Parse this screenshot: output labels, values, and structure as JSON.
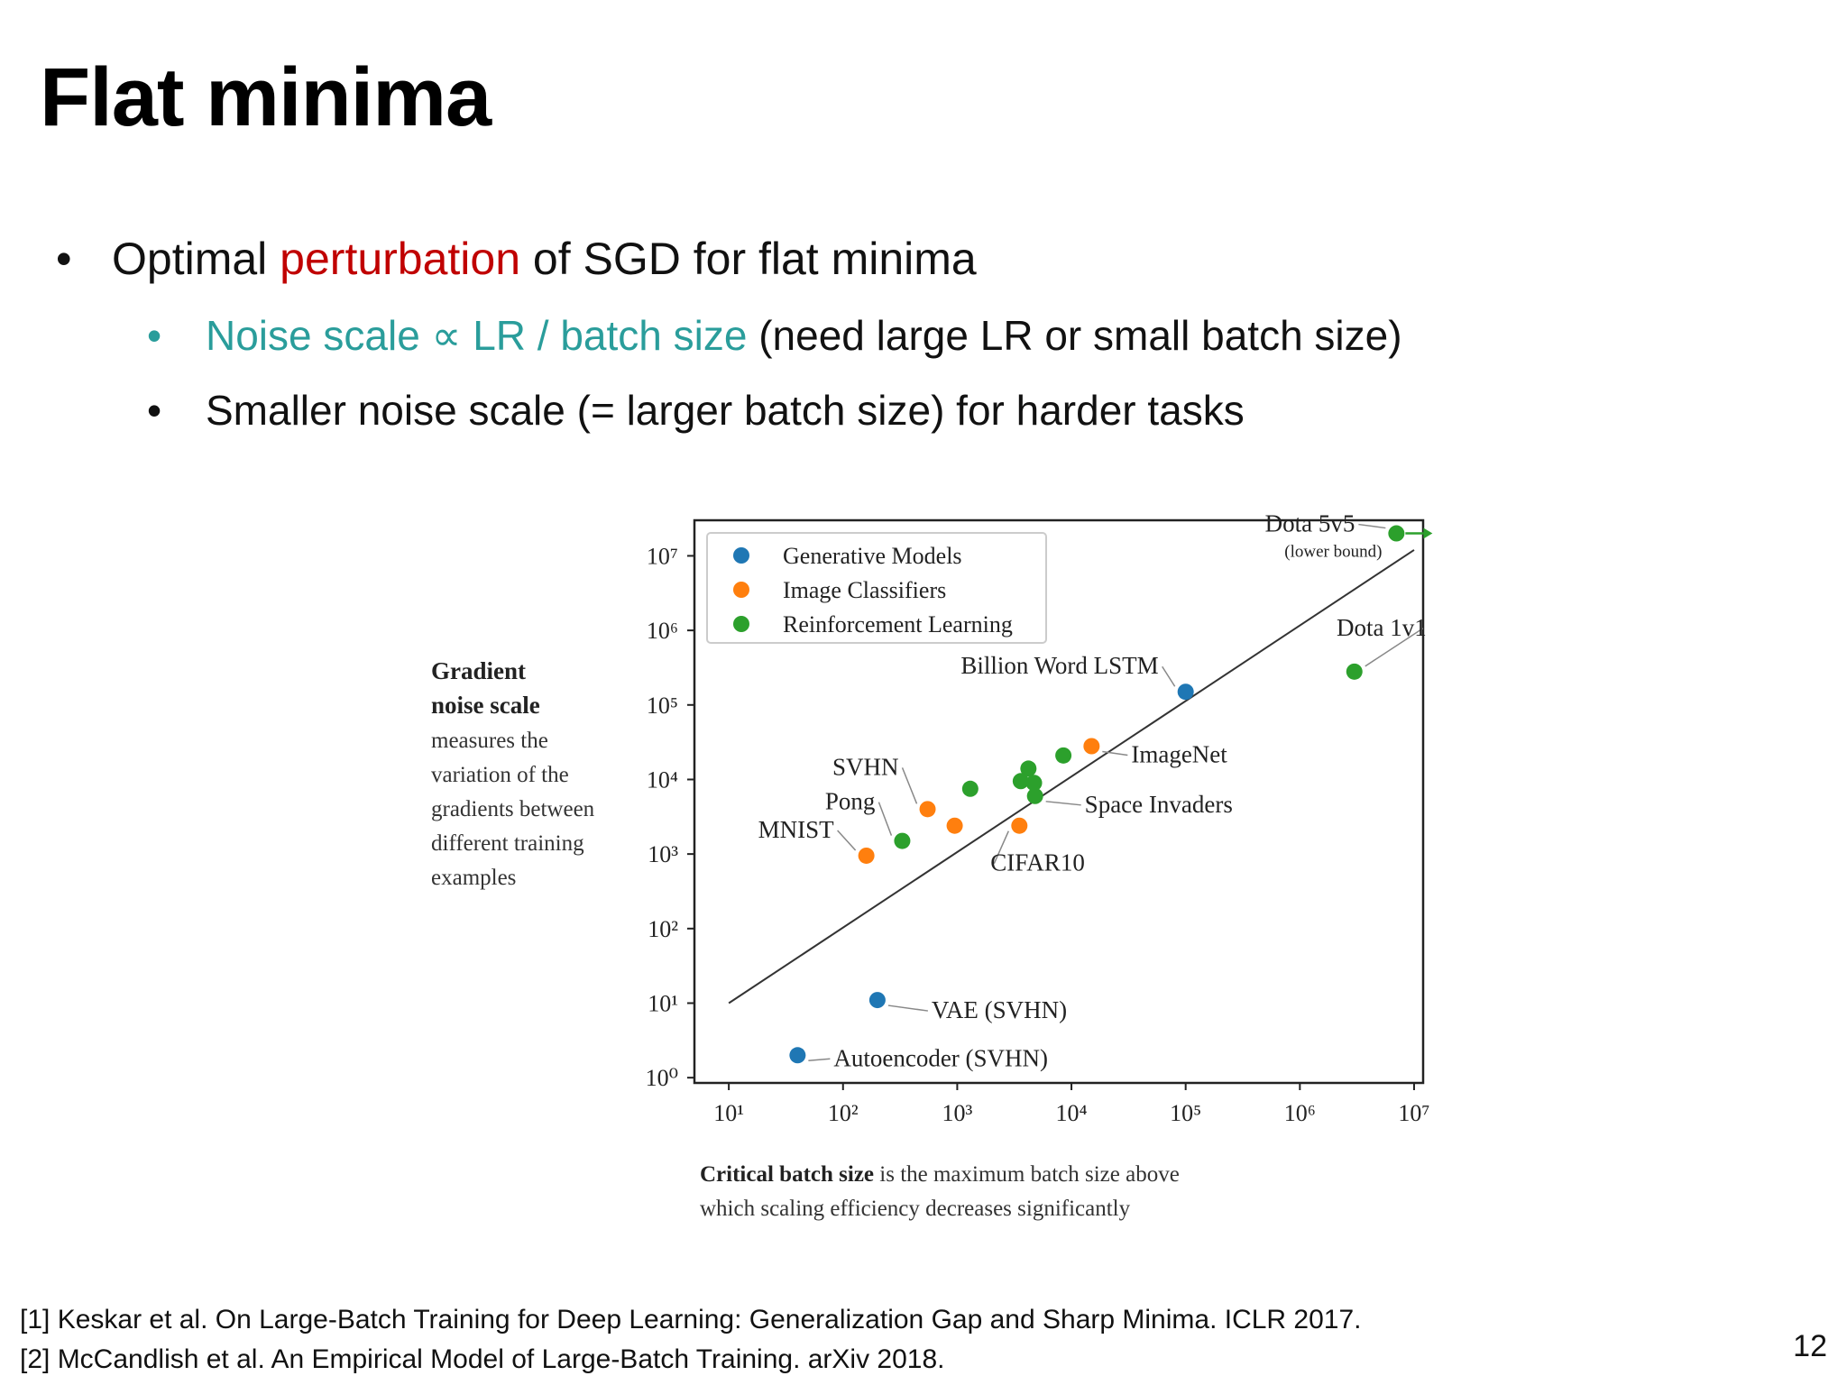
{
  "slide": {
    "title": "Flat minima",
    "bullets": {
      "b1": {
        "pre": "Optimal ",
        "highlight": "perturbation",
        "post": " of SGD for flat minima"
      },
      "b2": {
        "highlight": "Noise scale ∝ LR / batch size",
        "post": " (need large LR or small batch size)"
      },
      "b3": {
        "text": "Smaller noise scale (= larger batch size) for harder tasks"
      }
    },
    "bullet_symbol": "•",
    "references": [
      "[1] Keskar et al. On Large-Batch Training for Deep Learning: Generalization Gap and Sharp Minima. ICLR 2017.",
      "[2] McCandlish et al. An Empirical Model of Large-Batch Training. arXiv 2018."
    ],
    "page_number": "12",
    "colors": {
      "highlight_red": "#c00000",
      "highlight_teal": "#2a9d9b"
    }
  },
  "chart_data": {
    "type": "scatter",
    "x_scale": "log",
    "y_scale": "log",
    "xlim": [
      5,
      12000000
    ],
    "ylim": [
      0.85,
      30000000
    ],
    "x_ticks": [
      10,
      100,
      1000,
      10000,
      100000,
      1000000,
      10000000
    ],
    "y_ticks": [
      1,
      10,
      100,
      1000,
      10000,
      100000,
      1000000,
      10000000
    ],
    "x_tick_labels": [
      "10¹",
      "10²",
      "10³",
      "10⁴",
      "10⁵",
      "10⁶",
      "10⁷"
    ],
    "y_tick_labels": [
      "10⁰",
      "10¹",
      "10²",
      "10³",
      "10⁴",
      "10⁵",
      "10⁶",
      "10⁷"
    ],
    "grid": false,
    "legend": {
      "position": "top-left",
      "entries": [
        {
          "name": "Generative Models",
          "color": "#1f77b4"
        },
        {
          "name": "Image Classifiers",
          "color": "#ff7f0e"
        },
        {
          "name": "Reinforcement Learning",
          "color": "#2ca02c"
        }
      ]
    },
    "trend_line": {
      "x": [
        10,
        10000000
      ],
      "y": [
        10,
        12000000
      ]
    },
    "series": [
      {
        "name": "Generative Models",
        "color": "#1f77b4",
        "points": [
          {
            "x": 100000,
            "y": 150000,
            "label": "Billion Word LSTM"
          },
          {
            "x": 200,
            "y": 11,
            "label": "VAE (SVHN)"
          },
          {
            "x": 40,
            "y": 2,
            "label": "Autoencoder (SVHN)"
          }
        ]
      },
      {
        "name": "Image Classifiers",
        "color": "#ff7f0e",
        "points": [
          {
            "x": 15000,
            "y": 28000,
            "label": "ImageNet"
          },
          {
            "x": 550,
            "y": 4000,
            "label": "SVHN"
          },
          {
            "x": 160,
            "y": 950,
            "label": "MNIST"
          },
          {
            "x": 3500,
            "y": 2400,
            "label": "CIFAR10"
          },
          {
            "x": 950,
            "y": 2400,
            "label": ""
          }
        ]
      },
      {
        "name": "Reinforcement Learning",
        "color": "#2ca02c",
        "points": [
          {
            "x": 7000000,
            "y": 20000000,
            "label": "Dota 5v5"
          },
          {
            "x": 3000000,
            "y": 280000,
            "label": "Dota 1v1"
          },
          {
            "x": 330,
            "y": 1500,
            "label": "Pong"
          },
          {
            "x": 4800,
            "y": 6000,
            "label": "Space Invaders"
          },
          {
            "x": 8500,
            "y": 21000,
            "label": ""
          },
          {
            "x": 4200,
            "y": 14000,
            "label": ""
          },
          {
            "x": 3600,
            "y": 9500,
            "label": ""
          },
          {
            "x": 4700,
            "y": 9000,
            "label": ""
          },
          {
            "x": 1300,
            "y": 7500,
            "label": ""
          }
        ]
      }
    ],
    "annotations": {
      "dota5v5_sub": "(lower bound)"
    },
    "ylabel": {
      "bold_lines": [
        "Gradient",
        "noise scale"
      ],
      "lines": [
        "measures the",
        "variation of the",
        "gradients between",
        "different training",
        "examples"
      ]
    },
    "xlabel": {
      "bold": "Critical batch size",
      "line1_rest": " is the maximum batch size above",
      "line2": "which scaling efficiency decreases significantly"
    }
  }
}
